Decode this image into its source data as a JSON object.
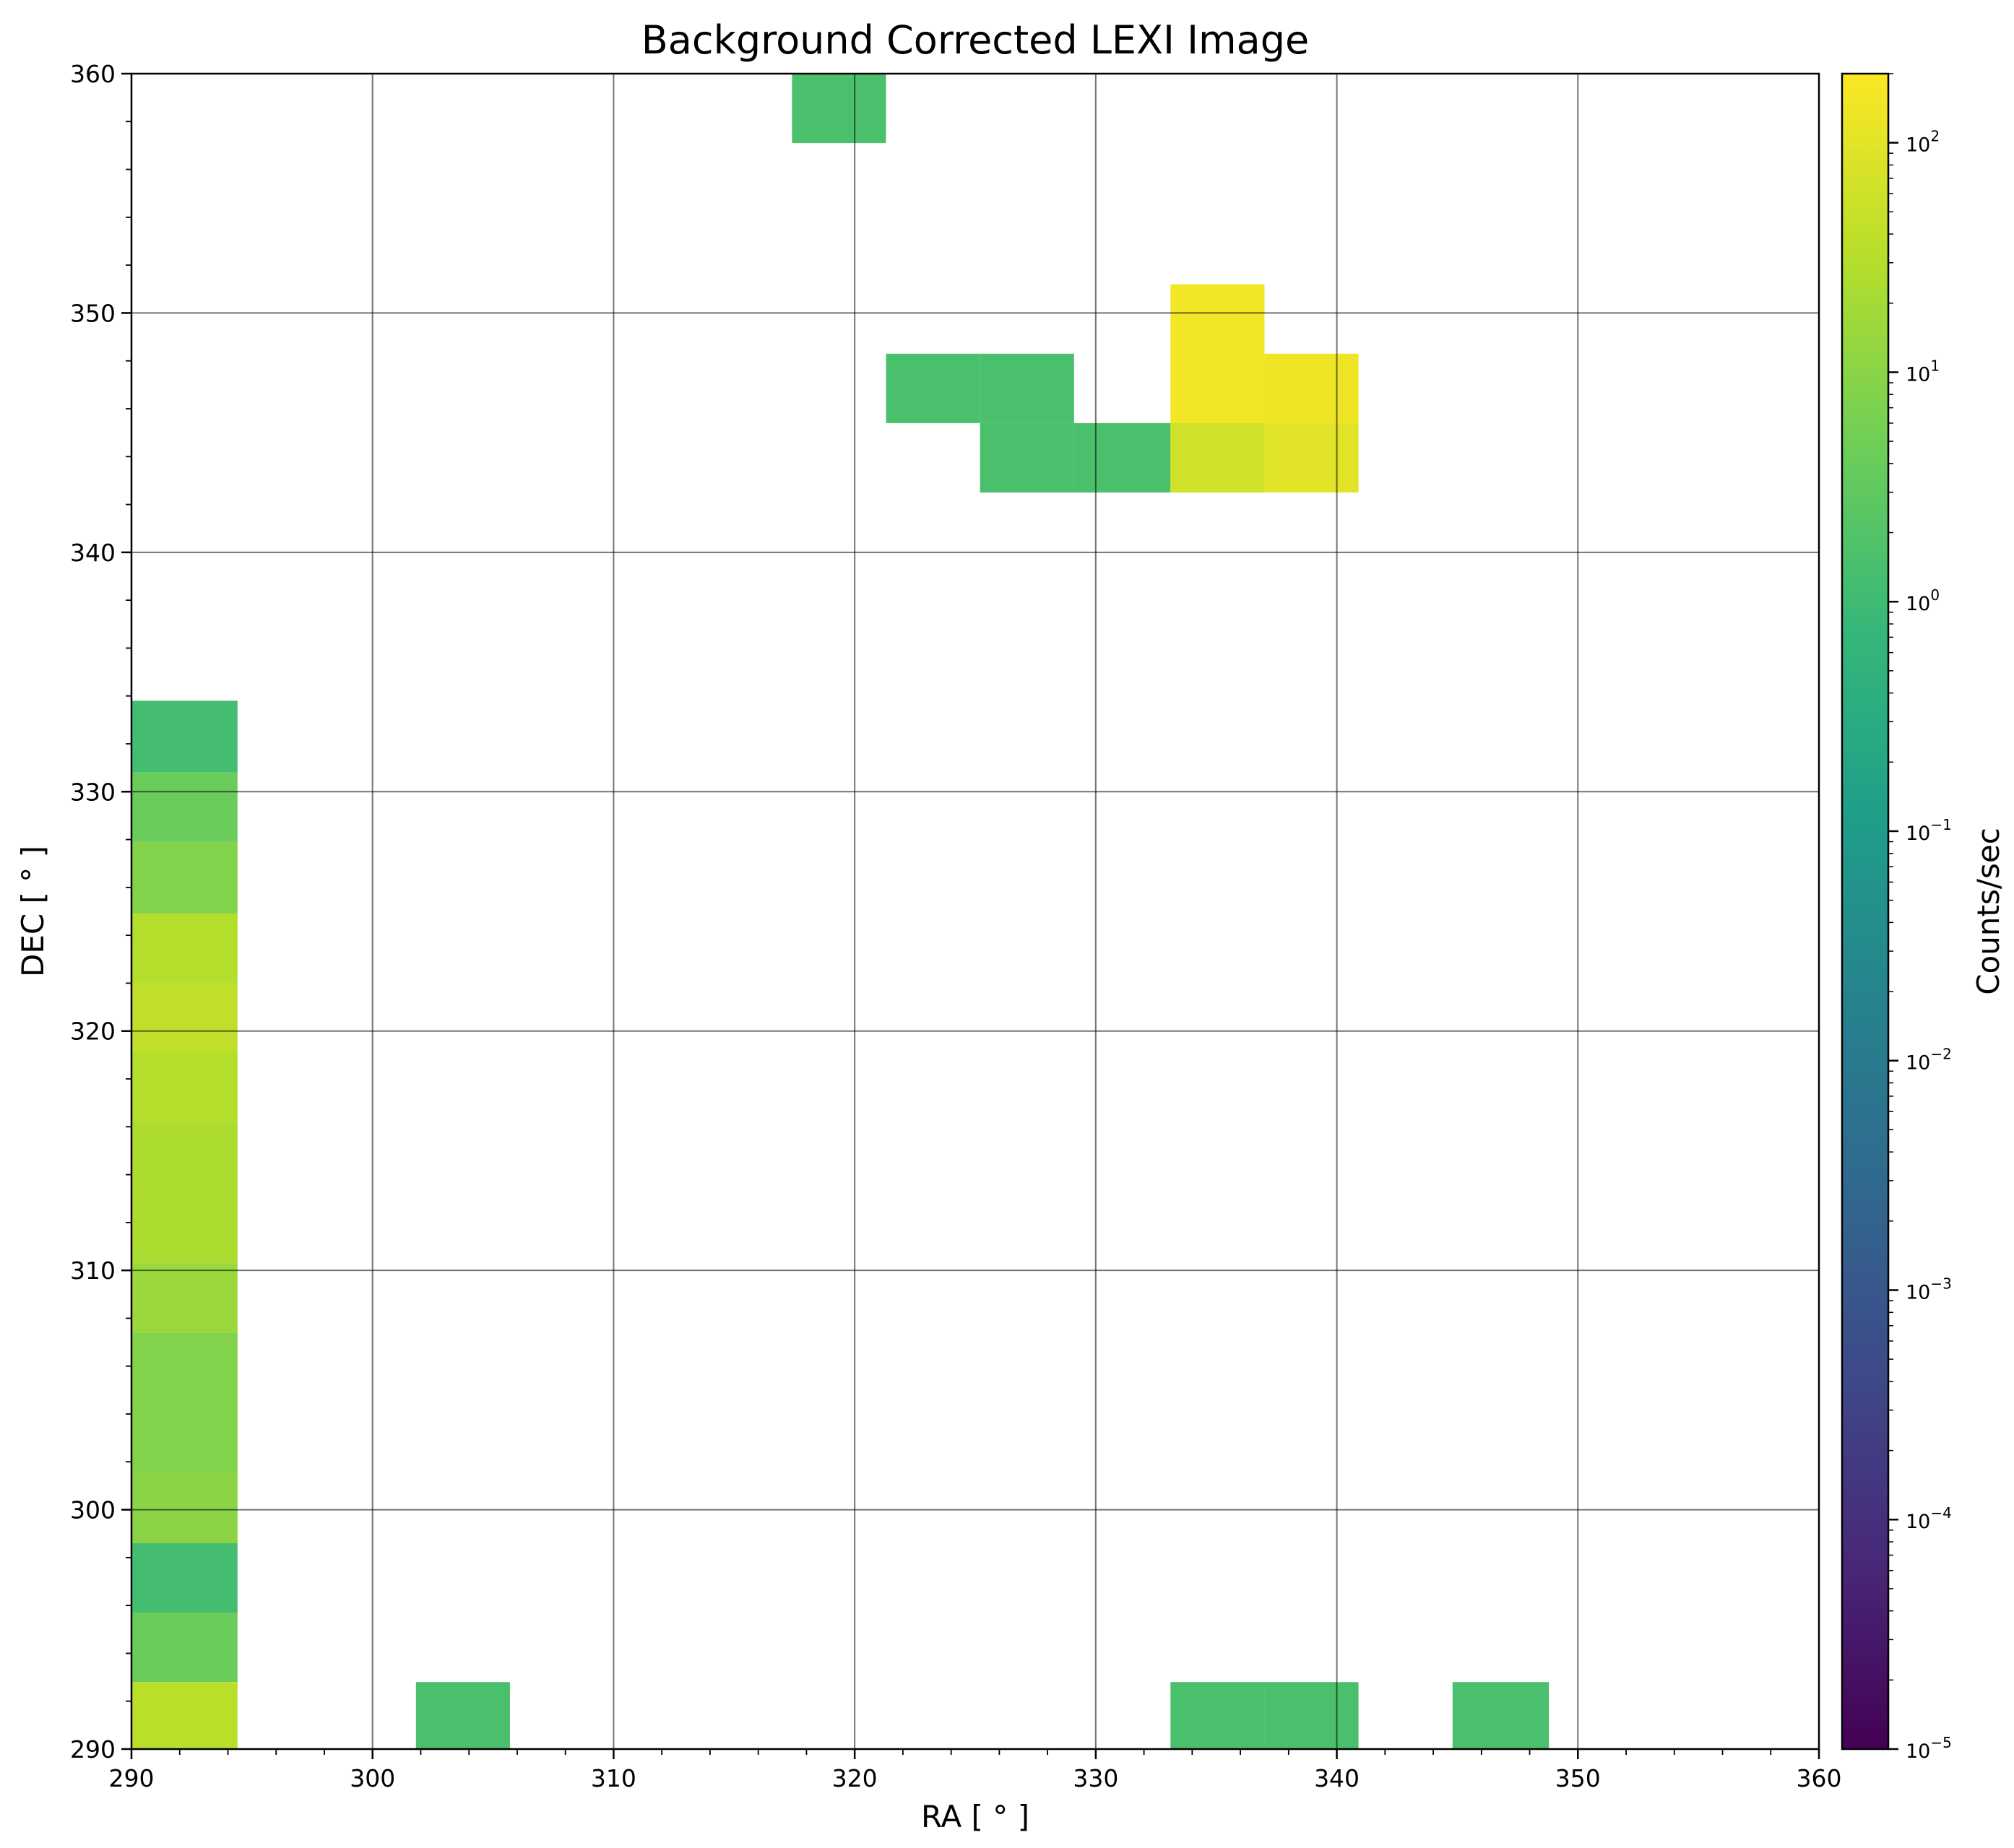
{
  "chart_data": {
    "type": "heatmap",
    "title": "Background Corrected LEXI Image",
    "xlabel": "RA [ ° ]",
    "ylabel": "DEC [ ° ]",
    "xlim": [
      290,
      360
    ],
    "ylim": [
      290,
      360
    ],
    "x_ticks": [
      "290",
      "300",
      "310",
      "320",
      "330",
      "340",
      "350",
      "360"
    ],
    "y_ticks": [
      "290",
      "300",
      "310",
      "320",
      "330",
      "340",
      "350",
      "360"
    ],
    "grid": true,
    "colorbar": {
      "label": "Counts/sec",
      "scale": "log",
      "range": [
        1e-05,
        200
      ],
      "colormap": [
        "#440154",
        "#482878",
        "#3e4989",
        "#31688e",
        "#26828e",
        "#1f9e89",
        "#35b779",
        "#6ece58",
        "#b5de2b",
        "#fde725"
      ],
      "ticks": [
        {
          "value": 1e-05,
          "base": "10",
          "exp": "−5"
        },
        {
          "value": 0.0001,
          "base": "10",
          "exp": "−4"
        },
        {
          "value": 0.001,
          "base": "10",
          "exp": "−3"
        },
        {
          "value": 0.01,
          "base": "10",
          "exp": "−2"
        },
        {
          "value": 0.1,
          "base": "10",
          "exp": "−1"
        },
        {
          "value": 1,
          "base": "10",
          "exp": "0"
        },
        {
          "value": 10,
          "base": "10",
          "exp": "1"
        },
        {
          "value": 100,
          "base": "10",
          "exp": "2"
        }
      ]
    },
    "cells": [
      {
        "x0": 317.4,
        "x1": 321.3,
        "y0": 357.1,
        "y1": 360,
        "value": 1.5
      },
      {
        "x0": 333.1,
        "x1": 337.0,
        "y0": 348.3,
        "y1": 351.2,
        "value": 150
      },
      {
        "x0": 321.3,
        "x1": 325.2,
        "y0": 345.4,
        "y1": 348.3,
        "value": 1.5
      },
      {
        "x0": 325.2,
        "x1": 329.1,
        "y0": 345.4,
        "y1": 348.3,
        "value": 1.5
      },
      {
        "x0": 333.1,
        "x1": 337.0,
        "y0": 345.4,
        "y1": 348.3,
        "value": 150
      },
      {
        "x0": 337.0,
        "x1": 340.9,
        "y0": 345.4,
        "y1": 348.3,
        "value": 140
      },
      {
        "x0": 325.2,
        "x1": 329.1,
        "y0": 342.5,
        "y1": 345.4,
        "value": 1.5
      },
      {
        "x0": 329.1,
        "x1": 333.1,
        "y0": 342.5,
        "y1": 345.4,
        "value": 1.5
      },
      {
        "x0": 333.1,
        "x1": 337.0,
        "y0": 342.5,
        "y1": 345.4,
        "value": 60
      },
      {
        "x0": 337.0,
        "x1": 340.9,
        "y0": 342.5,
        "y1": 345.4,
        "value": 100
      },
      {
        "x0": 290,
        "x1": 294.4,
        "y0": 330.8,
        "y1": 333.8,
        "value": 1.2
      },
      {
        "x0": 290,
        "x1": 294.4,
        "y0": 327.9,
        "y1": 330.8,
        "value": 4
      },
      {
        "x0": 290,
        "x1": 294.4,
        "y0": 324.9,
        "y1": 327.9,
        "value": 8
      },
      {
        "x0": 290,
        "x1": 294.4,
        "y0": 322.0,
        "y1": 324.9,
        "value": 30
      },
      {
        "x0": 290,
        "x1": 294.4,
        "y0": 319.1,
        "y1": 322.0,
        "value": 40
      },
      {
        "x0": 290,
        "x1": 294.4,
        "y0": 316.2,
        "y1": 319.1,
        "value": 30
      },
      {
        "x0": 290,
        "x1": 294.4,
        "y0": 313.2,
        "y1": 316.2,
        "value": 25
      },
      {
        "x0": 290,
        "x1": 294.4,
        "y0": 310.3,
        "y1": 313.2,
        "value": 25
      },
      {
        "x0": 290,
        "x1": 294.4,
        "y0": 307.4,
        "y1": 310.3,
        "value": 15
      },
      {
        "x0": 290,
        "x1": 294.4,
        "y0": 304.5,
        "y1": 307.4,
        "value": 8
      },
      {
        "x0": 290,
        "x1": 294.4,
        "y0": 301.6,
        "y1": 304.5,
        "value": 8
      },
      {
        "x0": 290,
        "x1": 294.4,
        "y0": 298.6,
        "y1": 301.6,
        "value": 10
      },
      {
        "x0": 290,
        "x1": 294.4,
        "y0": 295.7,
        "y1": 298.6,
        "value": 1.2
      },
      {
        "x0": 290,
        "x1": 294.4,
        "y0": 292.8,
        "y1": 295.7,
        "value": 4
      },
      {
        "x0": 290,
        "x1": 294.4,
        "y0": 290,
        "y1": 292.8,
        "value": 35
      },
      {
        "x0": 301.8,
        "x1": 305.7,
        "y0": 290,
        "y1": 292.8,
        "value": 1.5
      },
      {
        "x0": 333.1,
        "x1": 337.0,
        "y0": 290,
        "y1": 292.8,
        "value": 1.5
      },
      {
        "x0": 337.0,
        "x1": 340.9,
        "y0": 290,
        "y1": 292.8,
        "value": 1.5
      },
      {
        "x0": 344.8,
        "x1": 348.8,
        "y0": 290,
        "y1": 292.8,
        "value": 1.5
      }
    ]
  }
}
